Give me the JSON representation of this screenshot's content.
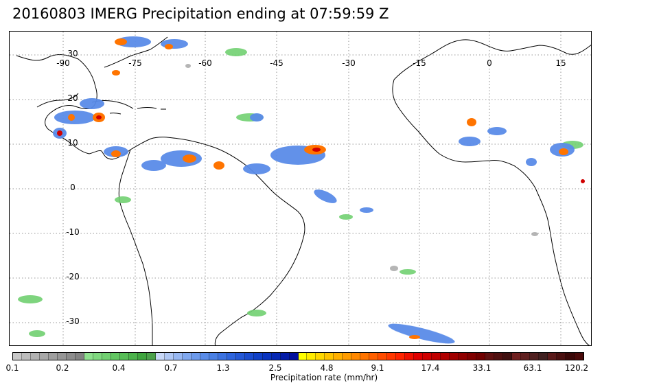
{
  "title": "20160803 IMERG Precipitation ending at 07:59:59 Z",
  "map": {
    "lon_labels": [
      "-90",
      "-75",
      "-60",
      "-45",
      "-30",
      "-15",
      "0",
      "15"
    ],
    "lat_labels": [
      "30",
      "20",
      "10",
      "0",
      "-10",
      "-20",
      "-30"
    ]
  },
  "colorbar": {
    "title": "Precipitation rate (mm/hr)",
    "tick_labels": [
      "0.1",
      "0.2",
      "0.4",
      "0.7",
      "1.3",
      "2.5",
      "4.8",
      "9.1",
      "17.4",
      "33.1",
      "63.1",
      "120.2"
    ],
    "colors": [
      "#c8c8c8",
      "#bdbdbd",
      "#b2b2b2",
      "#a8a8a8",
      "#9e9e9e",
      "#969696",
      "#8c8c8c",
      "#828282",
      "#8ee08e",
      "#7fd87f",
      "#71d071",
      "#63c763",
      "#57bd57",
      "#4cb34c",
      "#3fa53f",
      "#4ba14b",
      "#c8d8f8",
      "#b0c8f5",
      "#98b8f2",
      "#80a8ef",
      "#6c9aec",
      "#5a8ce8",
      "#4a80e4",
      "#3c72e0",
      "#2e64dc",
      "#2458d6",
      "#1a4cd0",
      "#1040c8",
      "#0a34c0",
      "#0628b4",
      "#041ca8",
      "#02109c",
      "#ffff00",
      "#ffec00",
      "#ffd800",
      "#ffc400",
      "#ffb000",
      "#ff9c00",
      "#ff8800",
      "#ff7400",
      "#ff6000",
      "#ff4c00",
      "#ff3800",
      "#ff2400",
      "#f01000",
      "#e00000",
      "#d00000",
      "#c00000",
      "#b00000",
      "#a00000",
      "#900000",
      "#800000",
      "#700000",
      "#601010",
      "#501010",
      "#401010",
      "#702020",
      "#602020",
      "#502020",
      "#402020",
      "#5a1a1a",
      "#4a1010",
      "#3a0808",
      "#4a0a0a"
    ]
  }
}
